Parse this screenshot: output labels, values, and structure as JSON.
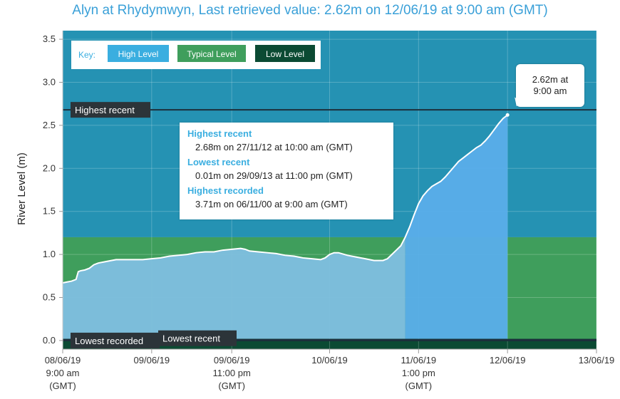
{
  "title": "Alyn at Rhydymwyn, Last retrieved value: 2.62m on 12/06/19 at 9:00 am (GMT)",
  "colors": {
    "high_band": "#2592b3",
    "typical_band": "#3f9e5c",
    "low_band": "#0b4a33",
    "level_fill_past": "#7fbfe0",
    "level_fill_recent": "#5aaeea",
    "level_line": "#ffffff",
    "reference_line": "#1c2f3c",
    "label_bg": "#2c3439"
  },
  "key": {
    "label": "Key:",
    "items": [
      {
        "label": "High Level",
        "color": "#3aaee0",
        "text_color": "#ffffff"
      },
      {
        "label": "Typical Level",
        "color": "#3f9e5c",
        "text_color": "#ffffff"
      },
      {
        "label": "Low Level",
        "color": "#0b4a33",
        "text_color": "#ffffff"
      }
    ]
  },
  "info": [
    {
      "title": "Highest recent",
      "value": "2.68m on 27/11/12 at 10:00 am (GMT)"
    },
    {
      "title": "Lowest recent",
      "value": "0.01m on 29/09/13 at 11:00 pm (GMT)"
    },
    {
      "title": "Highest recorded",
      "value": "3.71m on 06/11/00 at 9:00 am (GMT)"
    }
  ],
  "tooltip": {
    "line1": "2.62m at",
    "line2": "9:00 am"
  },
  "chart_data": {
    "type": "area",
    "ylabel": "River Level (m)",
    "ylim": [
      -0.1,
      3.6
    ],
    "yticks": [
      "0.0",
      "0.5",
      "1.0",
      "1.5",
      "2.0",
      "2.5",
      "3.0",
      "3.5"
    ],
    "ytick_values": [
      0.0,
      0.5,
      1.0,
      1.5,
      2.0,
      2.5,
      3.0,
      3.5
    ],
    "x_range_hours": [
      0,
      120
    ],
    "x_ticks": [
      {
        "hour": 0,
        "lines": [
          "08/06/19",
          "9:00 am",
          "(GMT)"
        ]
      },
      {
        "hour": 20,
        "lines": [
          "09/06/19"
        ]
      },
      {
        "hour": 38,
        "lines": [
          "09/06/19",
          "11:00 pm",
          "(GMT)"
        ]
      },
      {
        "hour": 60,
        "lines": [
          "10/06/19"
        ]
      },
      {
        "hour": 80,
        "lines": [
          "11/06/19",
          "1:00 pm",
          "(GMT)"
        ]
      },
      {
        "hour": 100,
        "lines": [
          "12/06/19"
        ]
      },
      {
        "hour": 120,
        "lines": [
          "13/06/19"
        ]
      }
    ],
    "bands": [
      {
        "name": "High Level",
        "from": 1.2,
        "to": 3.6
      },
      {
        "name": "Typical Level",
        "from": 0.02,
        "to": 1.2
      },
      {
        "name": "Low Level",
        "from": -0.1,
        "to": 0.02
      }
    ],
    "reference_lines": [
      {
        "label": "Highest recent",
        "value": 2.68
      },
      {
        "label": "Lowest recorded",
        "value": 0.0
      },
      {
        "label": "Lowest recent",
        "value": 0.01
      }
    ],
    "recent_from_hour": 77,
    "last_point": {
      "hour": 100,
      "value": 2.62
    },
    "series": [
      {
        "x": [
          0,
          1,
          2,
          3,
          3.5,
          4,
          5,
          6,
          7,
          8,
          10,
          12,
          14,
          16,
          18,
          20,
          22,
          24,
          26,
          28,
          30,
          32,
          34,
          36,
          38,
          40,
          41,
          42,
          44,
          46,
          48,
          50,
          52,
          54,
          56,
          58,
          59,
          60,
          61,
          62,
          64,
          66,
          68,
          70,
          72,
          73,
          74,
          75,
          76,
          77,
          78,
          79,
          80,
          81,
          82,
          83,
          84,
          85,
          86,
          87,
          88,
          89,
          90,
          91,
          92,
          93,
          94,
          95,
          96,
          97,
          98,
          99,
          100
        ],
        "values": [
          0.67,
          0.68,
          0.69,
          0.71,
          0.8,
          0.81,
          0.82,
          0.84,
          0.88,
          0.9,
          0.92,
          0.94,
          0.94,
          0.94,
          0.94,
          0.95,
          0.96,
          0.98,
          0.99,
          1.0,
          1.02,
          1.03,
          1.03,
          1.05,
          1.06,
          1.07,
          1.06,
          1.04,
          1.03,
          1.02,
          1.01,
          0.99,
          0.98,
          0.96,
          0.95,
          0.94,
          0.96,
          1.0,
          1.02,
          1.02,
          0.99,
          0.97,
          0.95,
          0.93,
          0.93,
          0.95,
          1.0,
          1.05,
          1.1,
          1.2,
          1.32,
          1.46,
          1.59,
          1.68,
          1.74,
          1.79,
          1.82,
          1.85,
          1.9,
          1.96,
          2.02,
          2.08,
          2.12,
          2.16,
          2.2,
          2.24,
          2.27,
          2.32,
          2.38,
          2.45,
          2.52,
          2.58,
          2.62
        ]
      }
    ]
  }
}
